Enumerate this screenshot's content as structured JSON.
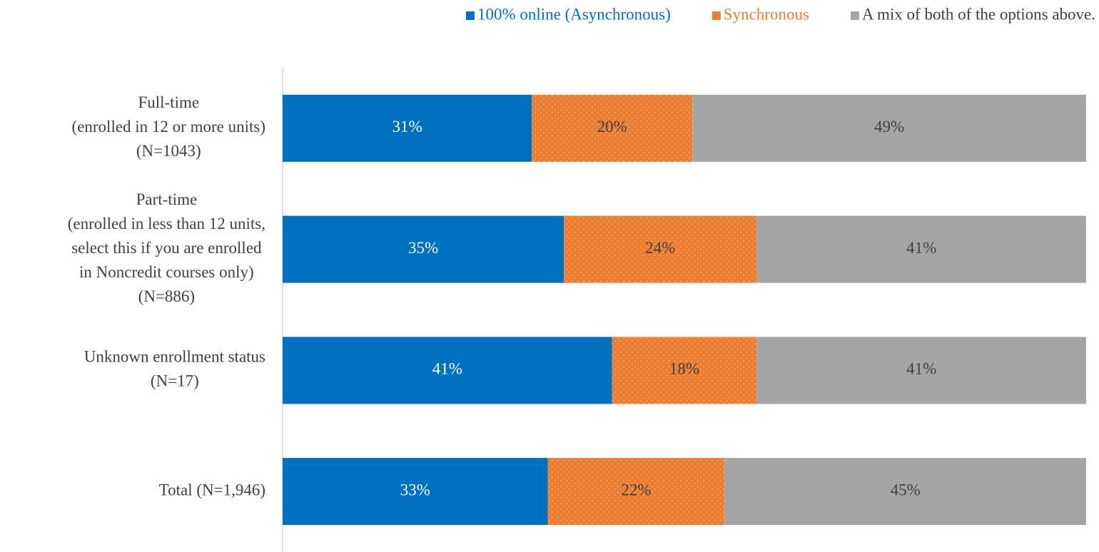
{
  "chart_data": {
    "type": "stacked_bar_horizontal",
    "categories": [
      [
        "Full-time",
        "(enrolled in 12 or more units)",
        "(N=1043)"
      ],
      [
        "Part-time",
        "(enrolled in less than 12 units,",
        "select this if you are enrolled",
        "in Noncredit courses only)",
        "(N=886)"
      ],
      [
        "Unknown enrollment status",
        "(N=17)"
      ],
      [
        "Total (N=1,946)"
      ]
    ],
    "series": [
      {
        "name": "100% online (Asynchronous)",
        "color": "#0070C0",
        "text_color": "#0070C0",
        "label_color": "#ffffff",
        "values": [
          31,
          35,
          41,
          33
        ],
        "value_labels": [
          "31%",
          "35%",
          "41%",
          "33%"
        ]
      },
      {
        "name": "Synchronous",
        "color": "#ED7D31",
        "text_color": "#ED7D31",
        "label_color": "#404040",
        "pattern": "dots",
        "values": [
          20,
          24,
          18,
          22
        ],
        "value_labels": [
          "20%",
          "24%",
          "18%",
          "22%"
        ]
      },
      {
        "name": "A mix of both of the options above.",
        "color": "#A5A5A5",
        "text_color": "#404040",
        "label_color": "#404040",
        "values": [
          49,
          41,
          41,
          45
        ],
        "value_labels": [
          "49%",
          "41%",
          "41%",
          "45%"
        ]
      }
    ],
    "xlim": [
      0,
      100
    ],
    "legend": "top"
  }
}
